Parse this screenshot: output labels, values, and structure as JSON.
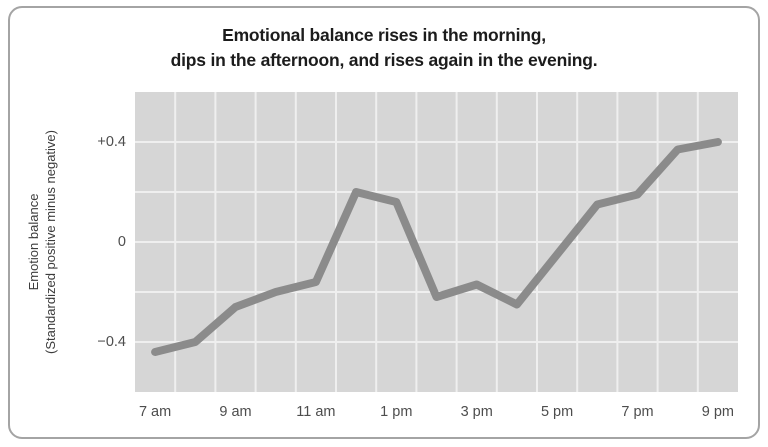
{
  "page": {
    "background": "#ffffff"
  },
  "card": {
    "border_color": "#a4a4a4"
  },
  "chart_data": {
    "type": "line",
    "title": "Emotional balance rises in the morning, dips in the afternoon, and rises again in the evening.",
    "title_lines": [
      "Emotional balance rises in the morning,",
      "dips in the afternoon, and rises again in the evening."
    ],
    "ylabel": "Emotion balance (Standardized positive minus negative)",
    "ylabel_lines": [
      "Emotion balance",
      "(Standardized positive minus negative)"
    ],
    "xlabel": "",
    "x": [
      "7 am",
      "8 am",
      "9 am",
      "10 am",
      "11 am",
      "12 pm",
      "1 pm",
      "2 pm",
      "3 pm",
      "4 pm",
      "5 pm",
      "6 pm",
      "7 pm",
      "8 pm",
      "9 pm"
    ],
    "values": [
      -0.44,
      -0.4,
      -0.26,
      -0.2,
      -0.16,
      0.2,
      0.16,
      -0.22,
      -0.17,
      -0.25,
      -0.05,
      0.15,
      0.19,
      0.37,
      0.4
    ],
    "x_ticks": [
      {
        "label": "7 am",
        "index": 0
      },
      {
        "label": "9 am",
        "index": 2
      },
      {
        "label": "11 am",
        "index": 4
      },
      {
        "label": "1 pm",
        "index": 6
      },
      {
        "label": "3 pm",
        "index": 8
      },
      {
        "label": "5 pm",
        "index": 10
      },
      {
        "label": "7 pm",
        "index": 12
      },
      {
        "label": "9 pm",
        "index": 14
      }
    ],
    "y_ticks": [
      {
        "label": "+0.4",
        "value": 0.4
      },
      {
        "label": "0",
        "value": 0
      },
      {
        "label": "−0.4",
        "value": -0.4
      }
    ],
    "grid_y": [
      0.4,
      0.2,
      0,
      -0.2,
      -0.4
    ],
    "ylim": [
      -0.6,
      0.6
    ],
    "grid": true,
    "legend": "none",
    "colors": {
      "line": "#8b8b8b",
      "plot_bg": "#d6d6d6",
      "grid": "#efefef",
      "title": "#1c1c1c",
      "tick": "#4d4d4d",
      "axis_label": "#3c3c3c",
      "card_border": "#a4a4a4"
    }
  }
}
